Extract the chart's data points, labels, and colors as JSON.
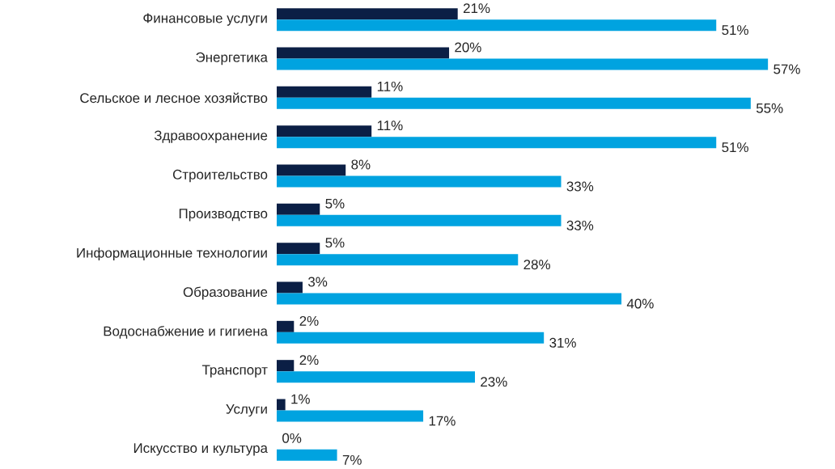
{
  "chart_data": {
    "type": "bar",
    "orientation": "horizontal",
    "categories": [
      "Финансовые услуги",
      "Энергетика",
      "Сельское и лесное хозяйство",
      "Здравоохранение",
      "Строительство",
      "Производство",
      "Информационные технологии",
      "Образование",
      "Водоснабжение и гигиена",
      "Транспорт",
      "Услуги",
      "Искусство и культура"
    ],
    "series": [
      {
        "color": "#0b1f45",
        "values": [
          21,
          20,
          11,
          11,
          8,
          5,
          5,
          3,
          2,
          2,
          1,
          0
        ],
        "value_labels": [
          "21%",
          "20%",
          "11%",
          "11%",
          "8%",
          "5%",
          "5%",
          "3%",
          "2%",
          "2%",
          "1%",
          "0%"
        ]
      },
      {
        "color": "#00a3e0",
        "values": [
          51,
          57,
          55,
          51,
          33,
          33,
          28,
          40,
          31,
          23,
          17,
          7
        ],
        "value_labels": [
          "51%",
          "57%",
          "55%",
          "51%",
          "33%",
          "33%",
          "28%",
          "40%",
          "31%",
          "23%",
          "17%",
          "7%"
        ]
      }
    ]
  }
}
